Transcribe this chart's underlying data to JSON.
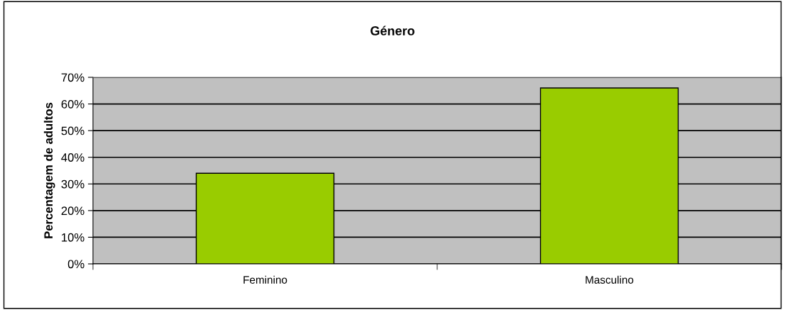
{
  "chart_data": {
    "type": "bar",
    "title": "Género",
    "ylabel": "Percentagem de adultos",
    "categories": [
      "Feminino",
      "Masculino"
    ],
    "values": [
      34,
      66
    ],
    "color": "#99cc00",
    "ylim": [
      0,
      70
    ],
    "yticks": [
      {
        "value": 0,
        "label": "0%"
      },
      {
        "value": 10,
        "label": "10%"
      },
      {
        "value": 20,
        "label": "20%"
      },
      {
        "value": 30,
        "label": "30%"
      },
      {
        "value": 40,
        "label": "40%"
      },
      {
        "value": 50,
        "label": "50%"
      },
      {
        "value": 60,
        "label": "60%"
      },
      {
        "value": 70,
        "label": "70%"
      }
    ],
    "grid": "y"
  }
}
